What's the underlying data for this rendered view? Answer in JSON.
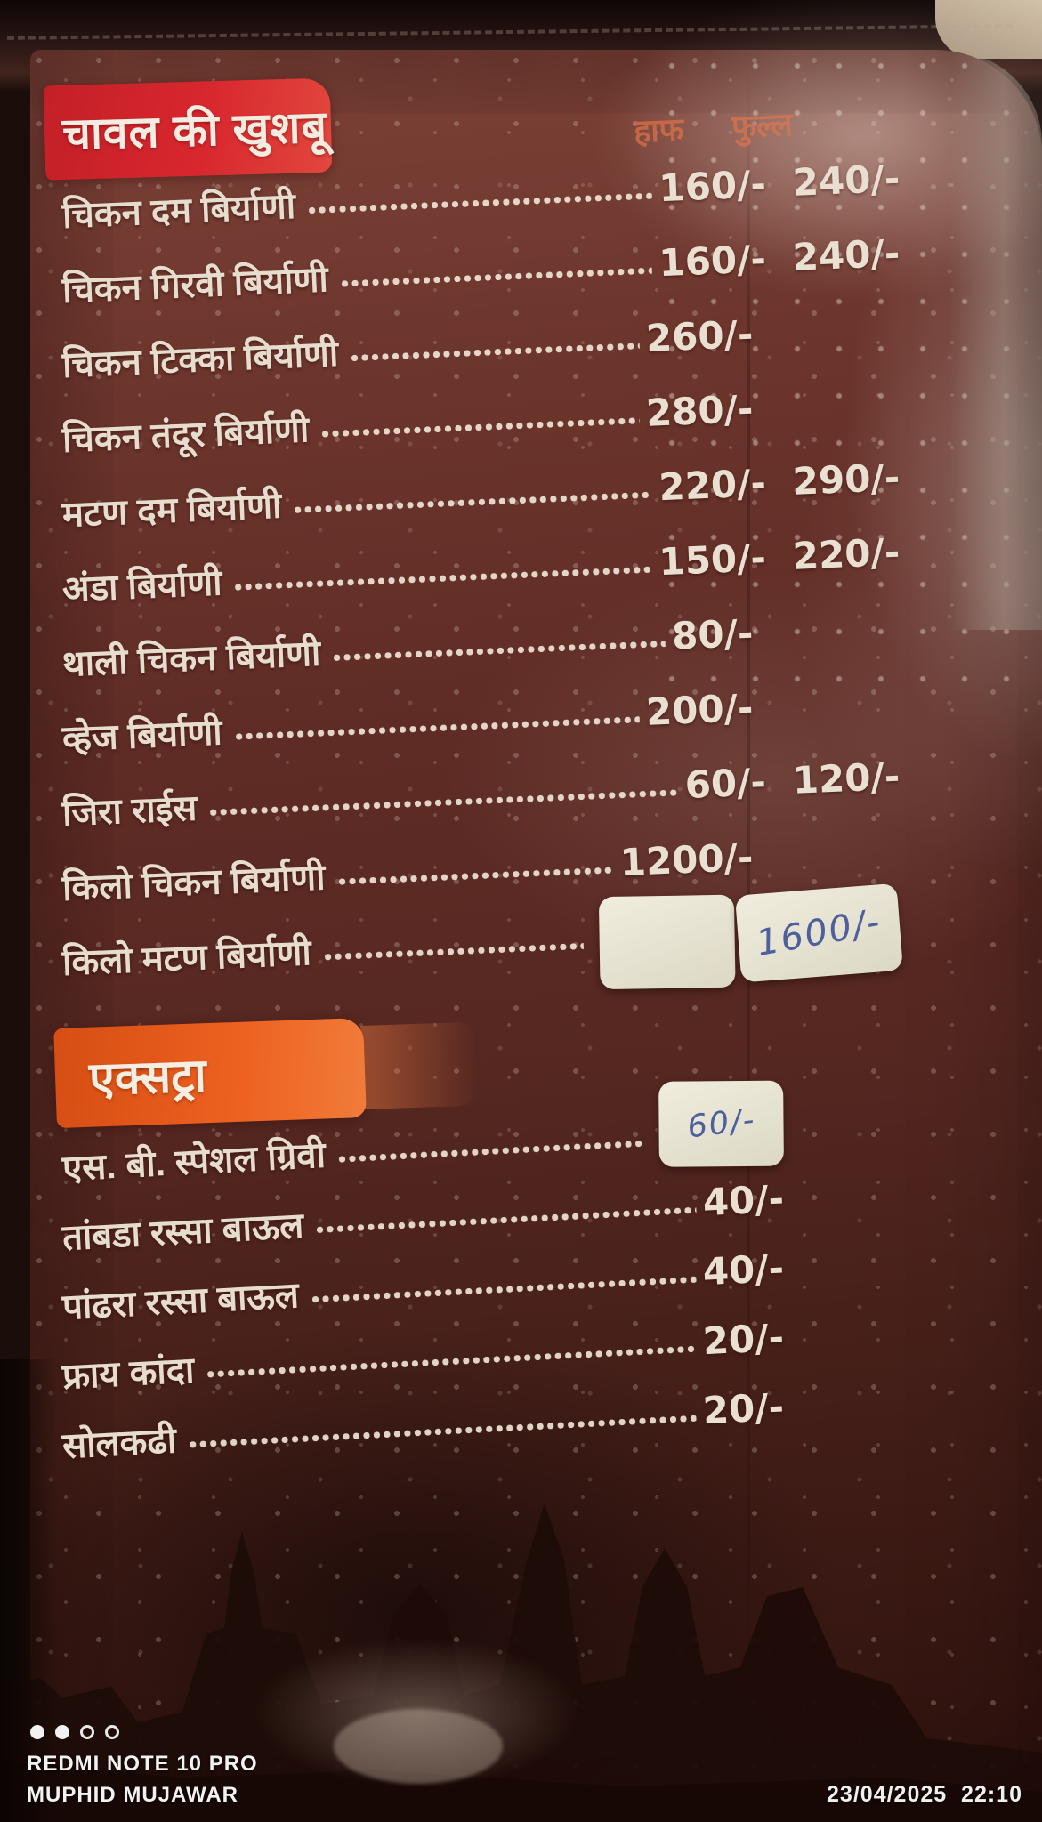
{
  "menu": {
    "section1": {
      "title": "चावल की खुशबू",
      "columns": {
        "half": "हाफ",
        "full": "फुल्ल"
      },
      "items": [
        {
          "name": "चिकन दम बिर्याणी",
          "half": "160/-",
          "full": "240/-"
        },
        {
          "name": "चिकन गिरवी बिर्याणी",
          "half": "160/-",
          "full": "240/-"
        },
        {
          "name": "चिकन टिक्का बिर्याणी",
          "half": "260/-"
        },
        {
          "name": "चिकन तंदूर बिर्याणी",
          "half": "280/-"
        },
        {
          "name": "मटण दम बिर्याणी",
          "half": "220/-",
          "full": "290/-"
        },
        {
          "name": "अंडा बिर्याणी",
          "half": "150/-",
          "full": "220/-"
        },
        {
          "name": "थाली चिकन बिर्याणी",
          "half": "80/-"
        },
        {
          "name": "व्हेज बिर्याणी",
          "half": "200/-"
        },
        {
          "name": "जिरा राईस",
          "half": "60/-",
          "full": "120/-"
        },
        {
          "name": "किलो चिकन बिर्याणी",
          "half": "1200/-"
        },
        {
          "name": "किलो मटण बिर्याणी",
          "stickers": [
            "",
            "1600/-"
          ]
        }
      ]
    },
    "section2": {
      "title": "एक्सट्रा",
      "items": [
        {
          "name": "एस. बी. स्पेशल ग्रिवी",
          "stickers": [
            "60/-"
          ]
        },
        {
          "name": "तांबडा रस्सा बाऊल",
          "half": "40/-"
        },
        {
          "name": "पांढरा रस्सा बाऊल",
          "half": "40/-"
        },
        {
          "name": "फ्राय कांदा",
          "half": "20/-"
        },
        {
          "name": "सोलकढी",
          "half": "20/-"
        }
      ]
    }
  },
  "watermark": {
    "dots_filled": 2,
    "dots_total": 4,
    "device": "REDMI NOTE 10 PRO",
    "user": "MUPHID MUJAWAR",
    "datetime": "23/04/2025  22:10"
  },
  "colors": {
    "page": "#5f2c25",
    "section1_header": "#d8272e",
    "section2_header": "#ee6120",
    "menu_text": "#e7ddcf",
    "handwriting_ink": "#4e5f9e"
  }
}
